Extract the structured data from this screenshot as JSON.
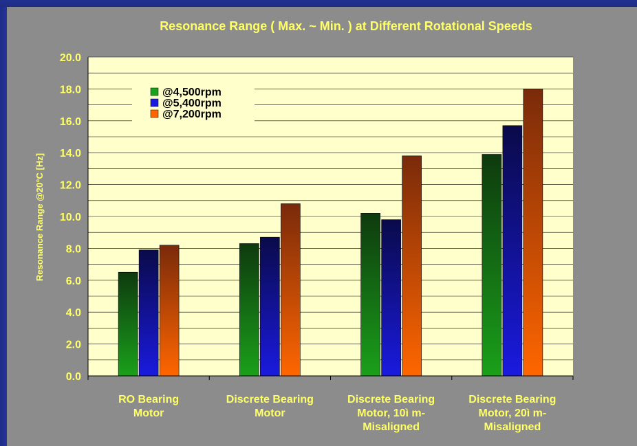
{
  "chart_data": {
    "type": "bar",
    "title": "Resonance Range ( Max.  ~  Min. ) at Different Rotational Speeds",
    "xlabel": "",
    "ylabel": "Resonance Range @20°C [Hz]",
    "ylim": [
      0,
      20
    ],
    "yticks": [
      "0.0",
      "2.0",
      "4.0",
      "6.0",
      "8.0",
      "10.0",
      "12.0",
      "14.0",
      "16.0",
      "18.0",
      "20.0"
    ],
    "grid": true,
    "legend_position": "top-left",
    "categories": [
      [
        "RO Bearing",
        "Motor"
      ],
      [
        "Discrete Bearing",
        "Motor"
      ],
      [
        "Discrete Bearing",
        "Motor, 10ì m-",
        "Misaligned"
      ],
      [
        "Discrete Bearing",
        "Motor, 20ì m-",
        "Misaligned"
      ]
    ],
    "series": [
      {
        "name": "@4,500rpm",
        "values": [
          6.5,
          8.3,
          10.2,
          13.9
        ],
        "color_dark": "#0e3a0e",
        "color_light": "#1aa01a"
      },
      {
        "name": "@5,400rpm",
        "values": [
          7.9,
          8.7,
          9.8,
          15.7
        ],
        "color_dark": "#0a0a4a",
        "color_light": "#1a1ae0"
      },
      {
        "name": "@7,200rpm",
        "values": [
          8.2,
          10.8,
          13.8,
          18.0
        ],
        "color_dark": "#7a2a0a",
        "color_light": "#ff6600"
      }
    ]
  },
  "colors": {
    "background": "#8c8c8c",
    "plot_area": "#ffffcc",
    "text": "#ffff66",
    "frame": "#1d2c86"
  }
}
